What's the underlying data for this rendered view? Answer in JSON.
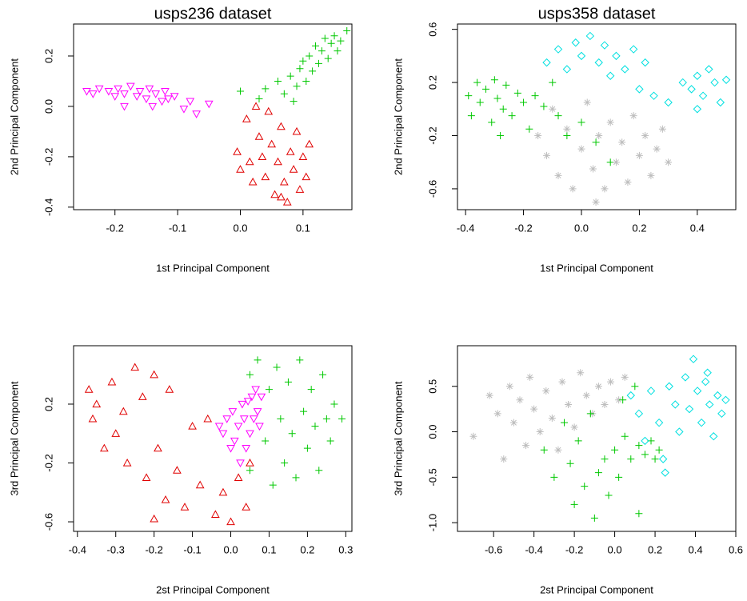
{
  "chart_data": [
    {
      "type": "scatter",
      "title": "usps236 dataset",
      "x_label": "1st Principal Component",
      "y_label": "2nd Principal Component",
      "xlim": [
        -0.266,
        0.178
      ],
      "ylim": [
        -0.41,
        0.327
      ],
      "xticks": [
        -0.2,
        -0.1,
        {
          "value": 0,
          "label": "0.0"
        },
        0.1
      ],
      "yticks": [
        -0.4,
        -0.2,
        {
          "value": 0,
          "label": "0.0"
        },
        0.2
      ],
      "grid": false,
      "series": [
        {
          "color": "#ff00ff",
          "marker": "triangle-down",
          "x": [
            -0.245,
            -0.235,
            -0.225,
            -0.21,
            -0.2,
            -0.195,
            -0.185,
            -0.175,
            -0.165,
            -0.16,
            -0.15,
            -0.145,
            -0.135,
            -0.125,
            -0.12,
            -0.115,
            -0.105,
            -0.09,
            -0.08,
            -0.07,
            -0.05,
            -0.185,
            -0.14
          ],
          "y": [
            0.06,
            0.05,
            0.07,
            0.06,
            0.04,
            0.07,
            0.05,
            0.08,
            0.04,
            0.06,
            0.03,
            0.07,
            0.05,
            0.02,
            0.06,
            0.03,
            0.04,
            -0.01,
            0.02,
            -0.03,
            0.01,
            0.0,
            0.0
          ]
        },
        {
          "color": "#e00000",
          "marker": "triangle",
          "x": [
            -0.005,
            0.0,
            0.01,
            0.015,
            0.02,
            0.025,
            0.03,
            0.035,
            0.04,
            0.045,
            0.05,
            0.055,
            0.06,
            0.065,
            0.07,
            0.075,
            0.08,
            0.085,
            0.09,
            0.095,
            0.1,
            0.105,
            0.11,
            0.065
          ],
          "y": [
            -0.18,
            -0.25,
            -0.05,
            -0.22,
            -0.3,
            0.0,
            -0.12,
            -0.2,
            -0.28,
            -0.02,
            -0.15,
            -0.35,
            -0.22,
            -0.08,
            -0.3,
            -0.38,
            -0.18,
            -0.25,
            -0.1,
            -0.33,
            -0.2,
            -0.28,
            -0.15,
            -0.36
          ]
        },
        {
          "color": "#00c800",
          "marker": "plus",
          "x": [
            0.0,
            0.03,
            0.04,
            0.06,
            0.07,
            0.08,
            0.09,
            0.095,
            0.1,
            0.105,
            0.11,
            0.115,
            0.12,
            0.125,
            0.13,
            0.135,
            0.14,
            0.145,
            0.15,
            0.155,
            0.16,
            0.17,
            0.085
          ],
          "y": [
            0.06,
            0.03,
            0.07,
            0.1,
            0.05,
            0.12,
            0.08,
            0.15,
            0.18,
            0.1,
            0.2,
            0.14,
            0.24,
            0.17,
            0.22,
            0.27,
            0.19,
            0.25,
            0.28,
            0.22,
            0.26,
            0.3,
            0.02
          ]
        }
      ]
    },
    {
      "type": "scatter",
      "title": "usps358 dataset",
      "x_label": "1st Principal Component",
      "y_label": "2nd Principal Component",
      "xlim": [
        -0.428,
        0.533
      ],
      "ylim": [
        -0.757,
        0.64
      ],
      "xticks": [
        -0.4,
        -0.2,
        {
          "value": 0,
          "label": "0.0"
        },
        0.2,
        0.4
      ],
      "yticks": [
        -0.6,
        -0.2,
        0.2,
        0.6
      ],
      "grid": false,
      "series": [
        {
          "color": "#00c800",
          "marker": "plus",
          "x": [
            -0.39,
            -0.38,
            -0.36,
            -0.35,
            -0.33,
            -0.31,
            -0.3,
            -0.29,
            -0.27,
            -0.26,
            -0.24,
            -0.22,
            -0.2,
            -0.18,
            -0.16,
            -0.13,
            -0.1,
            -0.08,
            -0.05,
            0.0,
            0.05,
            -0.28,
            0.1
          ],
          "y": [
            0.1,
            -0.05,
            0.2,
            0.05,
            0.15,
            -0.1,
            0.22,
            0.08,
            0.0,
            0.18,
            -0.05,
            0.12,
            0.05,
            -0.15,
            0.1,
            0.02,
            0.2,
            -0.05,
            -0.2,
            -0.1,
            -0.25,
            -0.2,
            -0.4
          ]
        },
        {
          "color": "#bebebe",
          "marker": "asterisk",
          "x": [
            -0.15,
            -0.12,
            -0.1,
            -0.08,
            -0.05,
            -0.03,
            0.0,
            0.02,
            0.04,
            0.06,
            0.08,
            0.1,
            0.12,
            0.14,
            0.16,
            0.18,
            0.2,
            0.22,
            0.24,
            0.26,
            0.28,
            0.3,
            0.05
          ],
          "y": [
            -0.2,
            -0.35,
            0.0,
            -0.5,
            -0.15,
            -0.6,
            -0.3,
            0.05,
            -0.45,
            -0.2,
            -0.6,
            -0.1,
            -0.4,
            -0.25,
            -0.55,
            -0.05,
            -0.35,
            -0.2,
            -0.5,
            -0.3,
            -0.15,
            -0.4,
            -0.7
          ]
        },
        {
          "color": "#00e0e0",
          "marker": "diamond",
          "x": [
            -0.12,
            -0.08,
            -0.05,
            -0.02,
            0.0,
            0.03,
            0.06,
            0.08,
            0.1,
            0.12,
            0.15,
            0.18,
            0.2,
            0.22,
            0.25,
            0.3,
            0.35,
            0.38,
            0.4,
            0.42,
            0.44,
            0.46,
            0.48,
            0.5,
            0.4
          ],
          "y": [
            0.35,
            0.45,
            0.3,
            0.5,
            0.4,
            0.55,
            0.35,
            0.48,
            0.25,
            0.4,
            0.3,
            0.45,
            0.15,
            0.35,
            0.1,
            0.05,
            0.2,
            0.15,
            0.25,
            0.1,
            0.3,
            0.2,
            0.05,
            0.22,
            0.0
          ]
        }
      ]
    },
    {
      "type": "scatter",
      "x_label": "2st Principal Component",
      "y_label": "3rd Principal Component",
      "xlim": [
        -0.41,
        0.316
      ],
      "ylim": [
        -0.665,
        0.597
      ],
      "xticks": [
        -0.4,
        -0.3,
        -0.2,
        -0.1,
        {
          "value": 0,
          "label": "0.0"
        },
        0.1,
        0.2,
        0.3
      ],
      "yticks": [
        -0.6,
        -0.2,
        0.2
      ],
      "grid": false,
      "series": [
        {
          "color": "#e00000",
          "marker": "triangle",
          "x": [
            -0.37,
            -0.36,
            -0.35,
            -0.33,
            -0.31,
            -0.3,
            -0.28,
            -0.27,
            -0.25,
            -0.23,
            -0.22,
            -0.2,
            -0.19,
            -0.17,
            -0.16,
            -0.14,
            -0.12,
            -0.1,
            -0.08,
            -0.06,
            -0.04,
            -0.02,
            0.0,
            0.02,
            0.04,
            0.05,
            -0.2
          ],
          "y": [
            0.3,
            0.1,
            0.2,
            -0.1,
            0.35,
            0.0,
            0.15,
            -0.2,
            0.45,
            0.25,
            -0.3,
            0.4,
            -0.1,
            -0.45,
            0.3,
            -0.25,
            -0.5,
            0.05,
            -0.35,
            0.1,
            -0.55,
            -0.4,
            -0.6,
            -0.3,
            -0.5,
            -0.2,
            -0.58
          ]
        },
        {
          "color": "#ff00ff",
          "marker": "triangle-down",
          "x": [
            -0.03,
            -0.02,
            -0.01,
            0.0,
            0.005,
            0.01,
            0.02,
            0.025,
            0.03,
            0.035,
            0.04,
            0.045,
            0.05,
            0.055,
            0.06,
            0.065,
            0.07,
            0.075,
            0.08
          ],
          "y": [
            0.05,
            0.0,
            0.1,
            -0.1,
            0.15,
            -0.05,
            0.05,
            -0.2,
            0.2,
            0.1,
            -0.1,
            0.22,
            0.0,
            0.25,
            0.1,
            0.3,
            0.15,
            0.05,
            0.25
          ]
        },
        {
          "color": "#00c800",
          "marker": "plus",
          "x": [
            0.05,
            0.07,
            0.09,
            0.1,
            0.11,
            0.12,
            0.13,
            0.14,
            0.15,
            0.16,
            0.17,
            0.18,
            0.19,
            0.2,
            0.21,
            0.22,
            0.23,
            0.24,
            0.25,
            0.26,
            0.27,
            0.29,
            0.05
          ],
          "y": [
            0.4,
            0.5,
            -0.05,
            0.3,
            -0.35,
            0.45,
            0.1,
            -0.2,
            0.35,
            0.0,
            -0.3,
            0.5,
            0.15,
            -0.1,
            0.3,
            0.05,
            -0.25,
            0.4,
            0.1,
            -0.05,
            0.2,
            0.1,
            -0.25
          ]
        }
      ]
    },
    {
      "type": "scatter",
      "x_label": "2st Principal Component",
      "y_label": "3rd Principal Component",
      "xlim": [
        -0.779,
        0.6
      ],
      "ylim": [
        -1.096,
        0.947
      ],
      "xticks": [
        -0.6,
        -0.4,
        -0.2,
        {
          "value": 0,
          "label": "0.0"
        },
        0.2,
        0.4,
        0.6
      ],
      "yticks": [
        {
          "value": -1,
          "label": "-1.0"
        },
        -0.5,
        {
          "value": 0,
          "label": "0.0"
        },
        0.5
      ],
      "grid": false,
      "series": [
        {
          "color": "#bebebe",
          "marker": "asterisk",
          "x": [
            -0.7,
            -0.62,
            -0.58,
            -0.55,
            -0.52,
            -0.5,
            -0.47,
            -0.44,
            -0.42,
            -0.4,
            -0.37,
            -0.34,
            -0.31,
            -0.28,
            -0.26,
            -0.23,
            -0.2,
            -0.17,
            -0.14,
            -0.11,
            -0.08,
            -0.05,
            -0.02,
            0.02,
            0.05
          ],
          "y": [
            -0.05,
            0.4,
            0.2,
            -0.3,
            0.5,
            0.1,
            0.35,
            -0.15,
            0.6,
            0.25,
            0.0,
            0.45,
            0.15,
            -0.2,
            0.55,
            0.3,
            0.05,
            0.65,
            0.4,
            0.2,
            0.5,
            0.3,
            0.55,
            0.35,
            0.6
          ]
        },
        {
          "color": "#00c800",
          "marker": "plus",
          "x": [
            -0.35,
            -0.3,
            -0.25,
            -0.22,
            -0.2,
            -0.18,
            -0.15,
            -0.12,
            -0.1,
            -0.08,
            -0.05,
            -0.03,
            0.0,
            0.02,
            0.05,
            0.08,
            0.1,
            0.12,
            0.15,
            0.18,
            0.2,
            0.22,
            0.12,
            0.04
          ],
          "y": [
            -0.2,
            -0.5,
            0.1,
            -0.35,
            -0.8,
            -0.1,
            -0.6,
            0.2,
            -0.95,
            -0.45,
            -0.3,
            -0.7,
            -0.2,
            -0.5,
            -0.05,
            -0.3,
            0.5,
            -0.15,
            -0.25,
            -0.1,
            -0.3,
            -0.2,
            -0.9,
            0.35
          ]
        },
        {
          "color": "#00e0e0",
          "marker": "diamond",
          "x": [
            0.08,
            0.12,
            0.15,
            0.18,
            0.22,
            0.24,
            0.27,
            0.3,
            0.32,
            0.35,
            0.37,
            0.39,
            0.41,
            0.43,
            0.45,
            0.47,
            0.49,
            0.51,
            0.53,
            0.55,
            0.25,
            0.46
          ],
          "y": [
            0.4,
            0.2,
            -0.1,
            0.45,
            0.1,
            -0.3,
            0.5,
            0.3,
            0.0,
            0.6,
            0.25,
            0.8,
            0.45,
            0.1,
            0.55,
            0.3,
            -0.05,
            0.4,
            0.2,
            0.35,
            -0.45,
            0.65
          ]
        }
      ]
    }
  ]
}
